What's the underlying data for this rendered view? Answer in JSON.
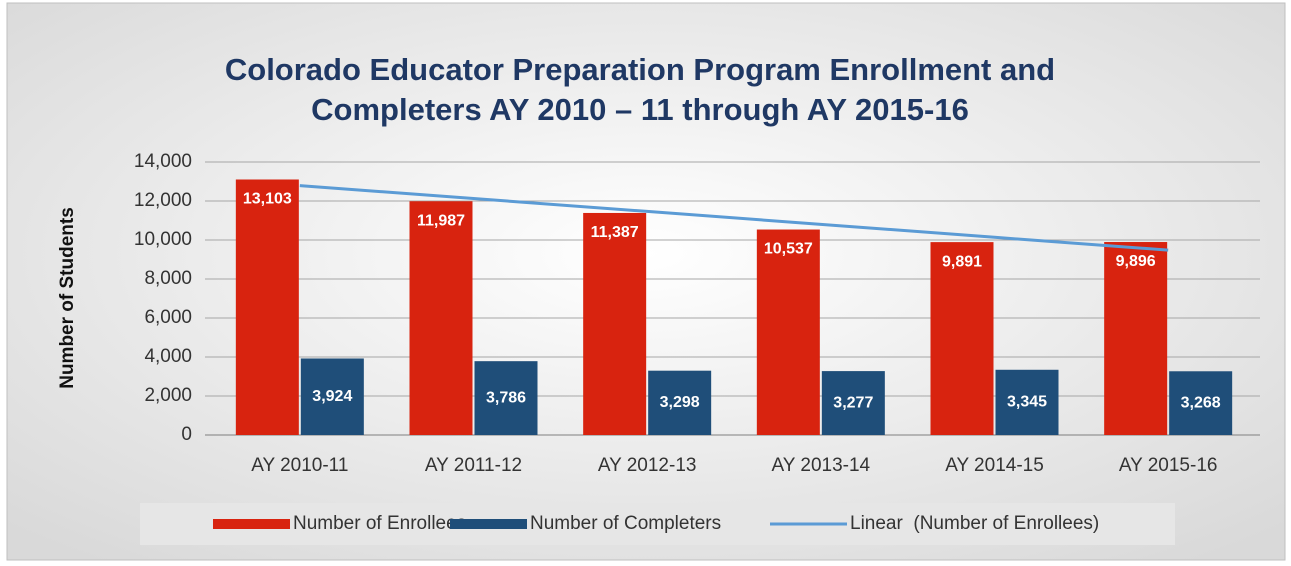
{
  "chart_data": {
    "type": "bar",
    "title": [
      "Colorado Educator Preparation Program Enrollment and",
      "Completers AY 2010 – 11 through AY 2015-16"
    ],
    "y_label": "Number of Students",
    "categories": [
      "AY 2010-11",
      "AY 2011-12",
      "AY 2012-13",
      "AY 2013-14",
      "AY 2014-15",
      "AY 2015-16"
    ],
    "series": [
      {
        "name": "Number of Enrollees",
        "type": "bar",
        "color": "#d8230f",
        "values": [
          13103,
          11987,
          11387,
          10537,
          9891,
          9896
        ],
        "value_labels": [
          "13,103",
          "11,987",
          "11,387",
          "10,537",
          "9,891",
          "9,896"
        ]
      },
      {
        "name": "Number of Completers",
        "type": "bar",
        "color": "#1f4e79",
        "values": [
          3924,
          3786,
          3298,
          3277,
          3345,
          3268
        ],
        "value_labels": [
          "3,924",
          "3,786",
          "3,298",
          "3,277",
          "3,345",
          "3,268"
        ]
      },
      {
        "name": "Linear  (Number of Enrollees)",
        "type": "line",
        "color": "#5b9bd5",
        "values": [
          12789,
          12127,
          11465,
          10802,
          10140,
          9478
        ]
      }
    ],
    "ylim": [
      0,
      14000
    ],
    "yticks": [
      0,
      {
        "value": 2000,
        "label": "2,000"
      },
      {
        "value": 4000,
        "label": "4,000"
      },
      {
        "value": 6000,
        "label": "6,000"
      },
      {
        "value": 8000,
        "label": "8,000"
      },
      {
        "value": 10000,
        "label": "10,000"
      },
      {
        "value": 12000,
        "label": "12,000"
      },
      {
        "value": 14000,
        "label": "14,000"
      }
    ],
    "grid": true,
    "legend": "bottom"
  }
}
